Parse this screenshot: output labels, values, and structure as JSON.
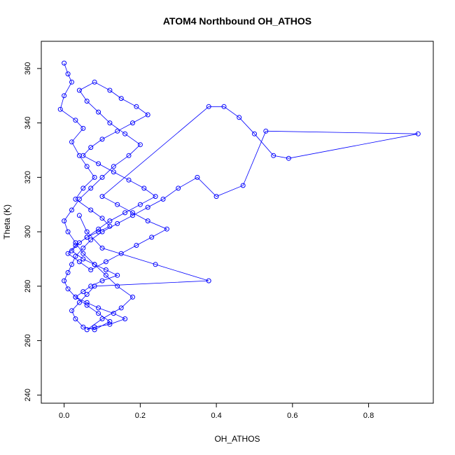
{
  "chart_data": {
    "type": "scatter",
    "title": "ATOM4 Northbound OH_ATHOS",
    "xlabel": "OH_ATHOS",
    "ylabel": "Theta (K)",
    "xlim": [
      -0.06,
      0.97
    ],
    "ylim": [
      237,
      370
    ],
    "x_ticks": [
      0.0,
      0.2,
      0.4,
      0.6,
      0.8
    ],
    "x_tick_labels": [
      "0.0",
      "0.2",
      "0.4",
      "0.6",
      "0.8"
    ],
    "y_ticks": [
      240,
      260,
      280,
      300,
      320,
      340,
      360
    ],
    "y_tick_labels": [
      "240",
      "260",
      "280",
      "300",
      "320",
      "340",
      "360"
    ],
    "grid": false,
    "marker": "open-circle",
    "connect_points": true,
    "color": "#0000ff",
    "series": [
      {
        "values_note": "",
        "x": [
          0.0,
          0.01,
          0.02,
          0.0,
          -0.01,
          0.03,
          0.05,
          0.02,
          0.04,
          0.06,
          0.08,
          0.05,
          0.03,
          0.07,
          0.1,
          0.12,
          0.09,
          0.06,
          0.04,
          0.02,
          0.05,
          0.08,
          0.11,
          0.14,
          0.1,
          0.07,
          0.05,
          0.03,
          0.06,
          0.09,
          0.13,
          0.16,
          0.12,
          0.08,
          0.06,
          0.1,
          0.15,
          0.18,
          0.14,
          0.11,
          0.08,
          0.05,
          0.03,
          0.01,
          0.0,
          0.02,
          0.04,
          0.07,
          0.1,
          0.13,
          0.17,
          0.2,
          0.16,
          0.12,
          0.09,
          0.06,
          0.04,
          0.08,
          0.12,
          0.15,
          0.19,
          0.22,
          0.18,
          0.14,
          0.1,
          0.07,
          0.05,
          0.09,
          0.13,
          0.17,
          0.21,
          0.24,
          0.2,
          0.16,
          0.12,
          0.09,
          0.06,
          0.03,
          0.01,
          0.04,
          0.07,
          0.11,
          0.15,
          0.19,
          0.23,
          0.27,
          0.22,
          0.18,
          0.14,
          0.1,
          0.38,
          0.42,
          0.46,
          0.5,
          0.55,
          0.59,
          0.93,
          0.53,
          0.47,
          0.4,
          0.35,
          0.3,
          0.26,
          0.22,
          0.18,
          0.14,
          0.1,
          0.07,
          0.05,
          0.03,
          0.02,
          0.01,
          0.0,
          0.01,
          0.03,
          0.06,
          0.09,
          0.12,
          0.08,
          0.05,
          0.03,
          0.02,
          0.04,
          0.06,
          0.08,
          0.38,
          0.24,
          0.1,
          0.06,
          0.04
        ],
        "y": [
          362,
          358,
          355,
          350,
          345,
          341,
          338,
          333,
          328,
          324,
          320,
          316,
          312,
          308,
          305,
          302,
          300,
          298,
          296,
          293,
          290,
          288,
          286,
          284,
          282,
          280,
          278,
          276,
          274,
          272,
          270,
          268,
          266,
          265,
          264,
          268,
          272,
          276,
          280,
          284,
          288,
          292,
          296,
          300,
          304,
          308,
          312,
          316,
          320,
          324,
          328,
          332,
          336,
          340,
          344,
          348,
          352,
          355,
          352,
          349,
          346,
          343,
          340,
          337,
          334,
          331,
          328,
          325,
          322,
          319,
          316,
          313,
          310,
          307,
          304,
          301,
          298,
          295,
          292,
          289,
          286,
          289,
          292,
          295,
          298,
          301,
          304,
          307,
          310,
          313,
          346,
          346,
          342,
          336,
          328,
          327,
          336,
          337,
          317,
          313,
          320,
          316,
          312,
          309,
          306,
          303,
          300,
          297,
          294,
          291,
          288,
          285,
          282,
          279,
          276,
          273,
          270,
          267,
          264,
          265,
          268,
          271,
          274,
          277,
          280,
          282,
          288,
          294,
          300,
          306
        ]
      }
    ]
  }
}
